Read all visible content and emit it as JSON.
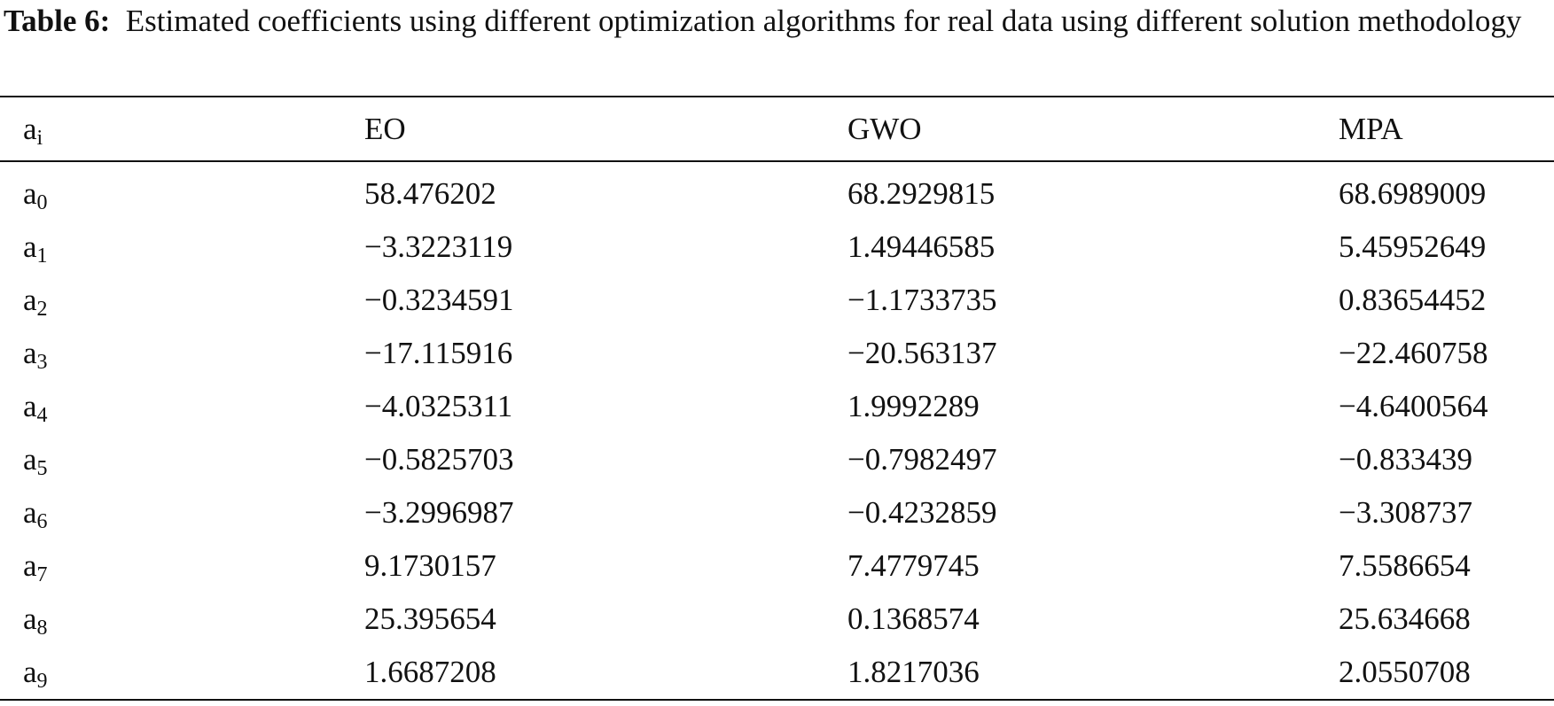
{
  "caption": {
    "label": "Table 6:",
    "text": "Estimated coefficients using different optimization algorithms for real data using different solution methodology"
  },
  "table": {
    "headers": {
      "coef_base": "a",
      "coef_sub": "i",
      "eo": "EO",
      "gwo": "GWO",
      "mpa": "MPA"
    },
    "rows": [
      {
        "base": "a",
        "sub": "0",
        "eo": "58.476202",
        "gwo": "68.2929815",
        "mpa": "68.6989009"
      },
      {
        "base": "a",
        "sub": "1",
        "eo": "−3.3223119",
        "gwo": "1.49446585",
        "mpa": "5.45952649"
      },
      {
        "base": "a",
        "sub": "2",
        "eo": "−0.3234591",
        "gwo": "−1.1733735",
        "mpa": "0.83654452"
      },
      {
        "base": "a",
        "sub": "3",
        "eo": "−17.115916",
        "gwo": "−20.563137",
        "mpa": "−22.460758"
      },
      {
        "base": "a",
        "sub": "4",
        "eo": "−4.0325311",
        "gwo": "1.9992289",
        "mpa": "−4.6400564"
      },
      {
        "base": "a",
        "sub": "5",
        "eo": "−0.5825703",
        "gwo": "−0.7982497",
        "mpa": "−0.833439"
      },
      {
        "base": "a",
        "sub": "6",
        "eo": "−3.2996987",
        "gwo": "−0.4232859",
        "mpa": "−3.308737"
      },
      {
        "base": "a",
        "sub": "7",
        "eo": "9.1730157",
        "gwo": "7.4779745",
        "mpa": "7.5586654"
      },
      {
        "base": "a",
        "sub": "8",
        "eo": "25.395654",
        "gwo": "0.1368574",
        "mpa": "25.634668"
      },
      {
        "base": "a",
        "sub": "9",
        "eo": "1.6687208",
        "gwo": "1.8217036",
        "mpa": "2.0550708"
      }
    ]
  }
}
